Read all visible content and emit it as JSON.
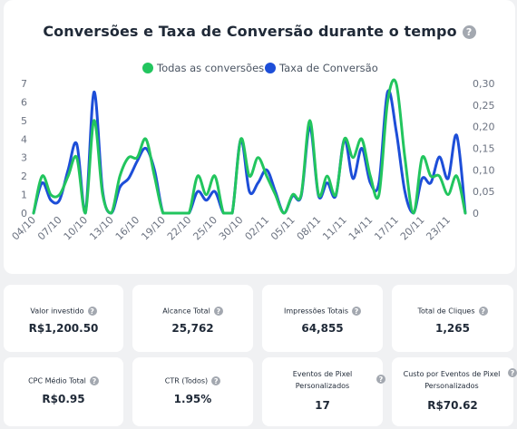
{
  "chart_data": {
    "type": "line",
    "title": "Conversões e Taxa de Conversão durante o tempo",
    "legend_position": "top",
    "categories": [
      "04/10",
      "07/10",
      "10/10",
      "13/10",
      "16/10",
      "19/10",
      "22/10",
      "25/10",
      "30/10",
      "02/11",
      "05/11",
      "08/11",
      "11/11",
      "14/11",
      "17/11",
      "20/11",
      "23/11"
    ],
    "x": [
      "04/10",
      "05/10",
      "06/10",
      "07/10",
      "08/10",
      "09/10",
      "10/10",
      "11/10",
      "12/10",
      "13/10",
      "14/10",
      "15/10",
      "16/10",
      "17/10",
      "18/10",
      "19/10",
      "20/10",
      "21/10",
      "22/10",
      "23/10",
      "24/10",
      "25/10",
      "26/10",
      "29/10",
      "30/10",
      "31/10",
      "01/11",
      "02/11",
      "03/11",
      "04/11",
      "05/11",
      "06/11",
      "07/11",
      "08/11",
      "09/11",
      "10/11",
      "11/11",
      "12/11",
      "13/11",
      "14/11",
      "15/11",
      "16/11",
      "17/11",
      "18/11",
      "19/11",
      "20/11",
      "21/11",
      "22/11",
      "23/11",
      "24/11",
      "25/11"
    ],
    "series": [
      {
        "name": "Todas as conversões",
        "color": "#22c55e",
        "axis": "left",
        "values": [
          0,
          2,
          1,
          1,
          2,
          3,
          0,
          5,
          1,
          0,
          2,
          3,
          3,
          4,
          2,
          0,
          0,
          0,
          0,
          2,
          1,
          2,
          0,
          0,
          4,
          2,
          3,
          2,
          1,
          0,
          1,
          1,
          5,
          1,
          2,
          1,
          4,
          3,
          4,
          2,
          1,
          6,
          7,
          3,
          0,
          3,
          2,
          2,
          1,
          2,
          0
        ]
      },
      {
        "name": "Taxa de Conversão",
        "color": "#1d4ed8",
        "axis": "right",
        "values": [
          0,
          0.07,
          0.03,
          0.03,
          0.1,
          0.16,
          0,
          0.28,
          0.05,
          0,
          0.06,
          0.08,
          0.12,
          0.15,
          0.1,
          0,
          0,
          0,
          0,
          0.05,
          0.03,
          0.05,
          0,
          0,
          0.17,
          0.05,
          0.07,
          0.1,
          0.05,
          0,
          0.04,
          0.04,
          0.2,
          0.04,
          0.07,
          0.04,
          0.17,
          0.08,
          0.15,
          0.07,
          0.07,
          0.28,
          0.19,
          0.05,
          0,
          0.08,
          0.07,
          0.13,
          0.08,
          0.18,
          0
        ]
      }
    ],
    "y_left": {
      "ticks": [
        0,
        1,
        2,
        3,
        4,
        5,
        6,
        7
      ],
      "ylim": [
        0,
        7
      ]
    },
    "y_right": {
      "ticks": [
        "0",
        "0,05",
        "0,10",
        "0,15",
        "0,20",
        "0,25",
        "0,30"
      ],
      "ylim": [
        0,
        0.3
      ]
    },
    "grid": false
  },
  "help_icon": "?",
  "metrics": [
    {
      "label": "Valor investido",
      "value": "R$1,200.50"
    },
    {
      "label": "Alcance Total",
      "value": "25,762"
    },
    {
      "label": "Impressões Totais",
      "value": "64,855"
    },
    {
      "label": "Total de Cliques",
      "value": "1,265"
    },
    {
      "label": "CPC Médio Total",
      "value": "R$0.95"
    },
    {
      "label": "CTR (Todos)",
      "value": "1.95%"
    },
    {
      "label": "Eventos de Pixel Personalizados",
      "value": "17"
    },
    {
      "label": "Custo por Eventos de Pixel Personalizados",
      "value": "R$70.62"
    }
  ]
}
